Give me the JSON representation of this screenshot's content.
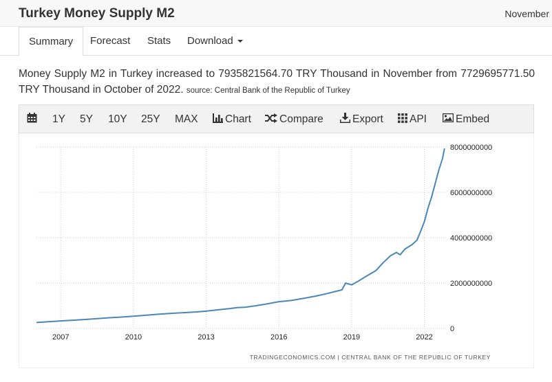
{
  "header": {
    "title": "Turkey Money Supply M2",
    "month": "November"
  },
  "tabs": [
    {
      "label": "Summary"
    },
    {
      "label": "Forecast"
    },
    {
      "label": "Stats"
    },
    {
      "label": "Download"
    }
  ],
  "description": {
    "text": "Money Supply M2 in Turkey increased to 7935821564.70 TRY Thousand in November from 7729695771.50 TRY Thousand in October of 2022.",
    "source": "source: Central Bank of the Republic of Turkey"
  },
  "toolbar": {
    "range_1y": "1Y",
    "range_5y": "5Y",
    "range_10y": "10Y",
    "range_25y": "25Y",
    "range_max": "MAX",
    "chart": "Chart",
    "compare": "Compare",
    "export": "Export",
    "api": "API",
    "embed": "Embed"
  },
  "footer": "TRADINGECONOMICS.COM | CENTRAL BANK OF THE REPUBLIC OF TURKEY",
  "colors": {
    "line": "#4a86b8",
    "grid": "#cccccc"
  },
  "chart_data": {
    "type": "line",
    "xlim": [
      2006.0,
      2022.95
    ],
    "ylim": [
      0,
      8000000000
    ],
    "x_ticks": [
      2007,
      2010,
      2013,
      2016,
      2019,
      2022
    ],
    "x_tick_labels": [
      "2007",
      "2010",
      "2013",
      "2016",
      "2019",
      "2022"
    ],
    "y_ticks": [
      0,
      2000000000,
      4000000000,
      6000000000,
      8000000000
    ],
    "y_tick_labels": [
      "0",
      "2000000000",
      "4000000000",
      "6000000000",
      "8000000000"
    ],
    "grid": true,
    "series": [
      {
        "x": [
          2006.0,
          2006.5,
          2007.0,
          2007.5,
          2008.0,
          2008.5,
          2009.0,
          2009.5,
          2010.0,
          2010.5,
          2011.0,
          2011.5,
          2012.0,
          2012.5,
          2013.0,
          2013.5,
          2014.0,
          2014.3,
          2014.6,
          2015.0,
          2015.5,
          2016.0,
          2016.5,
          2017.0,
          2017.5,
          2018.0,
          2018.3,
          2018.6,
          2018.75,
          2019.0,
          2019.3,
          2019.6,
          2020.0,
          2020.3,
          2020.6,
          2020.85,
          2021.0,
          2021.2,
          2021.5,
          2021.7,
          2021.85,
          2022.0,
          2022.15,
          2022.3,
          2022.45,
          2022.6,
          2022.75,
          2022.83
        ],
        "y": [
          260000000,
          295000000,
          330000000,
          360000000,
          395000000,
          430000000,
          470000000,
          500000000,
          540000000,
          580000000,
          625000000,
          660000000,
          690000000,
          720000000,
          760000000,
          820000000,
          880000000,
          920000000,
          930000000,
          990000000,
          1080000000,
          1180000000,
          1230000000,
          1320000000,
          1420000000,
          1540000000,
          1620000000,
          1700000000,
          2000000000,
          1920000000,
          2100000000,
          2300000000,
          2550000000,
          2900000000,
          3200000000,
          3350000000,
          3250000000,
          3500000000,
          3700000000,
          3900000000,
          4300000000,
          4700000000,
          5300000000,
          5800000000,
          6400000000,
          7000000000,
          7500000000,
          7935821564.7
        ]
      }
    ]
  }
}
